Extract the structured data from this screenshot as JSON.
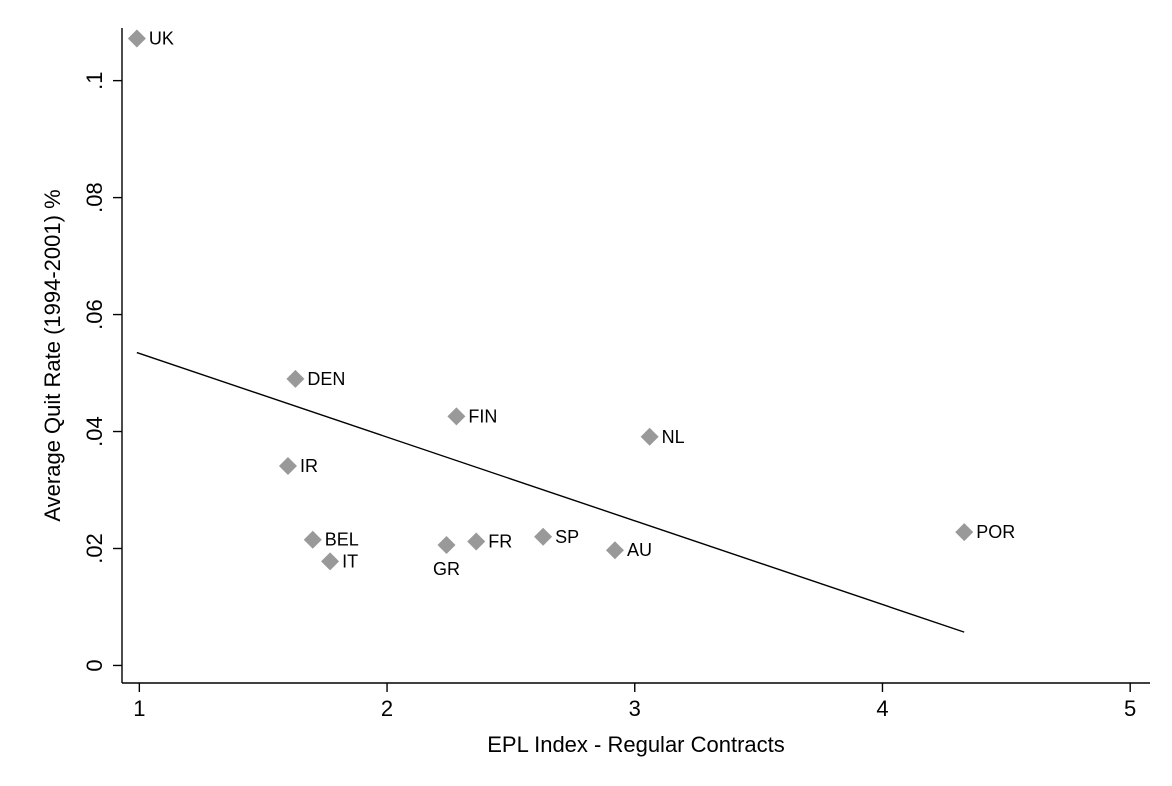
{
  "chart_data": {
    "type": "scatter",
    "xlabel": "EPL Index - Regular Contracts",
    "ylabel": "Average Quit Rate (1994-2001) %",
    "xlim": [
      0.93,
      5.08
    ],
    "ylim": [
      -0.003,
      0.109
    ],
    "x_ticks": [
      {
        "value": 1,
        "label": "1"
      },
      {
        "value": 2,
        "label": "2"
      },
      {
        "value": 3,
        "label": "3"
      },
      {
        "value": 4,
        "label": "4"
      },
      {
        "value": 5,
        "label": "5"
      }
    ],
    "y_ticks": [
      {
        "value": 0,
        "label": "0"
      },
      {
        "value": 0.02,
        "label": ".02"
      },
      {
        "value": 0.04,
        "label": ".04"
      },
      {
        "value": 0.06,
        "label": ".06"
      },
      {
        "value": 0.08,
        "label": ".08"
      },
      {
        "value": 0.1,
        "label": ".1"
      }
    ],
    "points": [
      {
        "label": "UK",
        "x": 0.99,
        "y": 0.1072
      },
      {
        "label": "DEN",
        "x": 1.63,
        "y": 0.049
      },
      {
        "label": "FIN",
        "x": 2.28,
        "y": 0.0426
      },
      {
        "label": "NL",
        "x": 3.06,
        "y": 0.0391
      },
      {
        "label": "IR",
        "x": 1.6,
        "y": 0.0341
      },
      {
        "label": "BEL",
        "x": 1.7,
        "y": 0.0215
      },
      {
        "label": "IT",
        "x": 1.77,
        "y": 0.0178
      },
      {
        "label": "GR",
        "x": 2.24,
        "y": 0.0206
      },
      {
        "label": "FR",
        "x": 2.36,
        "y": 0.0212
      },
      {
        "label": "SP",
        "x": 2.63,
        "y": 0.022
      },
      {
        "label": "AU",
        "x": 2.92,
        "y": 0.0197
      },
      {
        "label": "POR",
        "x": 4.33,
        "y": 0.0228
      }
    ],
    "fit_line": {
      "x": [
        0.99,
        4.33
      ],
      "y": [
        0.0535,
        0.0057
      ]
    },
    "grid": false
  }
}
